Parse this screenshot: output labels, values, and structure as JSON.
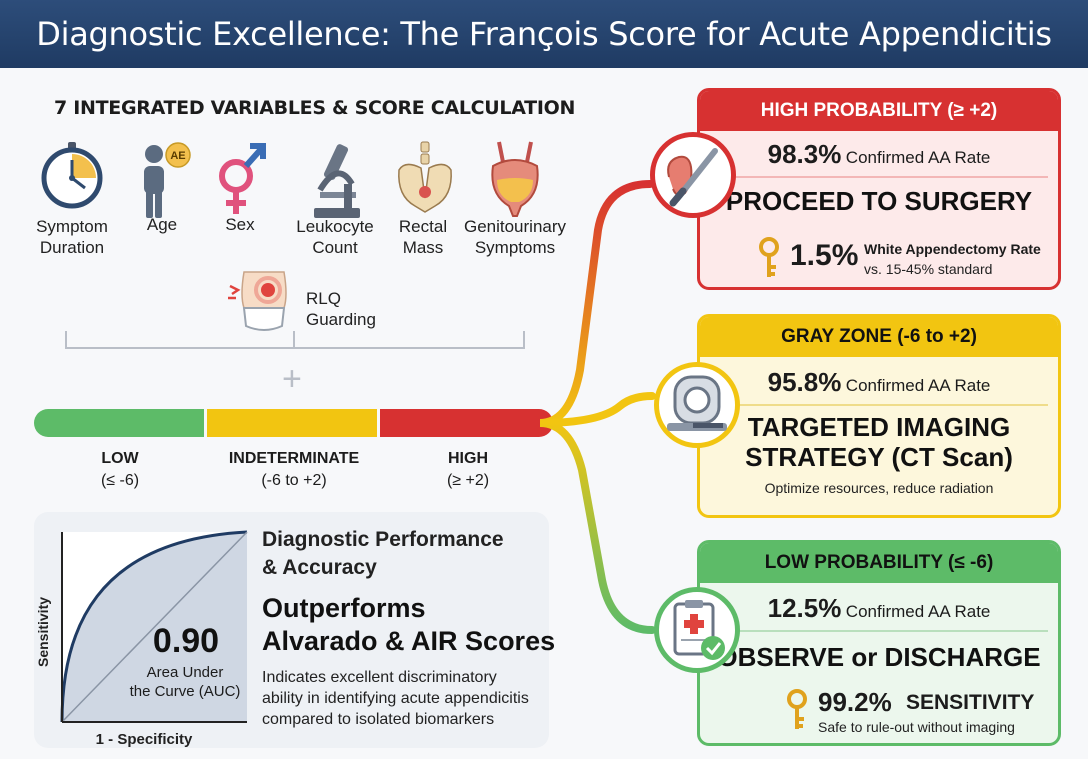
{
  "title": "Diagnostic Excellence: The François Score for Acute Appendicitis",
  "variables": {
    "heading": "7 INTEGRATED VARIABLES & SCORE CALCULATION",
    "items": [
      {
        "label": "Symptom\nDuration",
        "icon": "clock-icon"
      },
      {
        "label": "Age",
        "icon": "person-age-icon",
        "badge": "AE"
      },
      {
        "label": "Sex",
        "icon": "gender-symbol-icon"
      },
      {
        "label": "Leukocyte\nCount",
        "icon": "microscope-icon"
      },
      {
        "label": "Rectal\nMass",
        "icon": "pelvis-icon"
      },
      {
        "label": "Genitourinary\nSymptoms",
        "icon": "bladder-icon"
      },
      {
        "label": "RLQ\nGuarding",
        "icon": "abdomen-pain-icon"
      }
    ]
  },
  "scale": {
    "low": {
      "label": "LOW",
      "range": "(≤ -6)",
      "color": "#5dbb68"
    },
    "mid": {
      "label": "INDETERMINATE",
      "range": "(-6 to +2)",
      "color": "#f2c511"
    },
    "high": {
      "label": "HIGH",
      "range": "(≥ +2)",
      "color": "#d73131"
    }
  },
  "performance": {
    "heading": "Diagnostic Performance\n& Accuracy",
    "auc_value": "0.90",
    "auc_label": "Area Under\nthe Curve (AUC)",
    "y_axis": "Sensitivity",
    "x_axis": "1 - Specificity",
    "headline": "Outperforms\nAlvarado & AIR Scores",
    "description": "Indicates excellent discriminatory\nability in identifying acute appendicitis\ncompared to isolated biomarkers"
  },
  "cards": {
    "high": {
      "header": "HIGH PROBABILITY (≥ +2)",
      "rate_pct": "98.3%",
      "rate_text": "Confirmed AA Rate",
      "action": "PROCEED TO SURGERY",
      "stat_pct": "1.5%",
      "stat_label": "White Appendectomy Rate",
      "stat_sub": "vs. 15-45% standard",
      "color": "#d73131"
    },
    "gray": {
      "header": "GRAY ZONE (-6 to +2)",
      "rate_pct": "95.8%",
      "rate_text": "Confirmed AA Rate",
      "action": "TARGETED IMAGING\nSTRATEGY (CT Scan)",
      "note": "Optimize resources, reduce radiation",
      "color": "#f2c511"
    },
    "low": {
      "header": "LOW PROBABILITY (≤ -6)",
      "rate_pct": "12.5%",
      "rate_text": "Confirmed AA Rate",
      "action": "OBSERVE or DISCHARGE",
      "stat_pct": "99.2%",
      "stat_label": "SENSITIVITY",
      "stat_sub": "Safe to rule-out without imaging",
      "color": "#5dbb68"
    }
  }
}
